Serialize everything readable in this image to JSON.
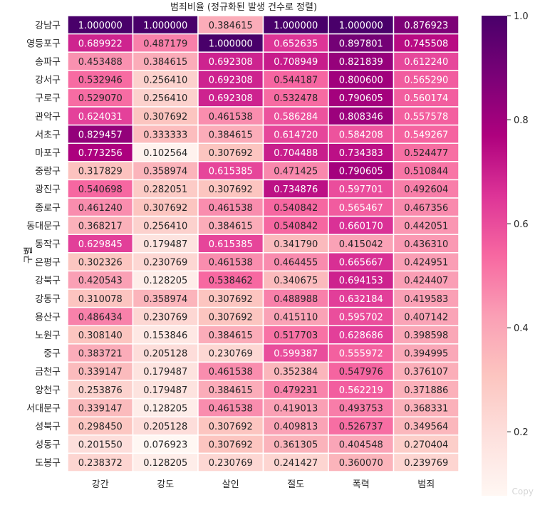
{
  "chart_data": {
    "type": "heatmap",
    "title": "범죄비율 (정규화된 발생 건수로 정렬)",
    "ylabel": "구별",
    "xlabel": "",
    "columns": [
      "강간",
      "강도",
      "살인",
      "절도",
      "폭력",
      "범죄"
    ],
    "rows": [
      "강남구",
      "영등포구",
      "송파구",
      "강서구",
      "구로구",
      "관악구",
      "서초구",
      "마포구",
      "중랑구",
      "광진구",
      "종로구",
      "동대문구",
      "동작구",
      "은평구",
      "강북구",
      "강동구",
      "용산구",
      "노원구",
      "중구",
      "금천구",
      "양천구",
      "서대문구",
      "성북구",
      "성동구",
      "도봉구"
    ],
    "values": [
      [
        1.0,
        1.0,
        0.384615,
        1.0,
        1.0,
        0.876923
      ],
      [
        0.689922,
        0.487179,
        1.0,
        0.652635,
        0.897801,
        0.745508
      ],
      [
        0.453488,
        0.384615,
        0.692308,
        0.708949,
        0.821839,
        0.61224
      ],
      [
        0.532946,
        0.25641,
        0.692308,
        0.544187,
        0.8006,
        0.56529
      ],
      [
        0.52907,
        0.25641,
        0.692308,
        0.532478,
        0.790605,
        0.560174
      ],
      [
        0.624031,
        0.307692,
        0.461538,
        0.586284,
        0.808346,
        0.557578
      ],
      [
        0.829457,
        0.333333,
        0.384615,
        0.61472,
        0.584208,
        0.549267
      ],
      [
        0.773256,
        0.102564,
        0.307692,
        0.704488,
        0.734383,
        0.524477
      ],
      [
        0.317829,
        0.358974,
        0.615385,
        0.471425,
        0.790605,
        0.510844
      ],
      [
        0.540698,
        0.282051,
        0.307692,
        0.734876,
        0.597701,
        0.492604
      ],
      [
        0.46124,
        0.307692,
        0.461538,
        0.540842,
        0.565467,
        0.467356
      ],
      [
        0.368217,
        0.25641,
        0.384615,
        0.540842,
        0.66017,
        0.442051
      ],
      [
        0.629845,
        0.179487,
        0.615385,
        0.34179,
        0.415042,
        0.43631
      ],
      [
        0.302326,
        0.230769,
        0.461538,
        0.464455,
        0.665667,
        0.424951
      ],
      [
        0.420543,
        0.128205,
        0.538462,
        0.340675,
        0.694153,
        0.424407
      ],
      [
        0.310078,
        0.358974,
        0.307692,
        0.488988,
        0.632184,
        0.419583
      ],
      [
        0.486434,
        0.230769,
        0.307692,
        0.41511,
        0.595702,
        0.407142
      ],
      [
        0.30814,
        0.153846,
        0.384615,
        0.517703,
        0.628686,
        0.398598
      ],
      [
        0.383721,
        0.205128,
        0.230769,
        0.599387,
        0.555972,
        0.394995
      ],
      [
        0.339147,
        0.179487,
        0.461538,
        0.352384,
        0.547976,
        0.376107
      ],
      [
        0.253876,
        0.179487,
        0.384615,
        0.479231,
        0.562219,
        0.371886
      ],
      [
        0.339147,
        0.128205,
        0.461538,
        0.419013,
        0.493753,
        0.368331
      ],
      [
        0.29845,
        0.205128,
        0.307692,
        0.409813,
        0.526737,
        0.349564
      ],
      [
        0.20155,
        0.076923,
        0.307692,
        0.361305,
        0.404548,
        0.270404
      ],
      [
        0.238372,
        0.128205,
        0.230769,
        0.241427,
        0.36007,
        0.239769
      ]
    ],
    "colorbar": {
      "colormap": "RdPu",
      "range": [
        0.076923,
        1.0
      ],
      "ticks": [
        0.2,
        0.4,
        0.6,
        0.8,
        1.0
      ],
      "tick_labels": [
        "0.2",
        "0.4",
        "0.6",
        "0.8",
        "1.0"
      ]
    },
    "colors": {
      "scale": [
        "#fff7f3",
        "#fde0dd",
        "#fcc5c0",
        "#fa9fb5",
        "#f768a1",
        "#dd3497",
        "#ae017e",
        "#7a0177",
        "#49006a"
      ]
    }
  },
  "watermark": "Copy"
}
